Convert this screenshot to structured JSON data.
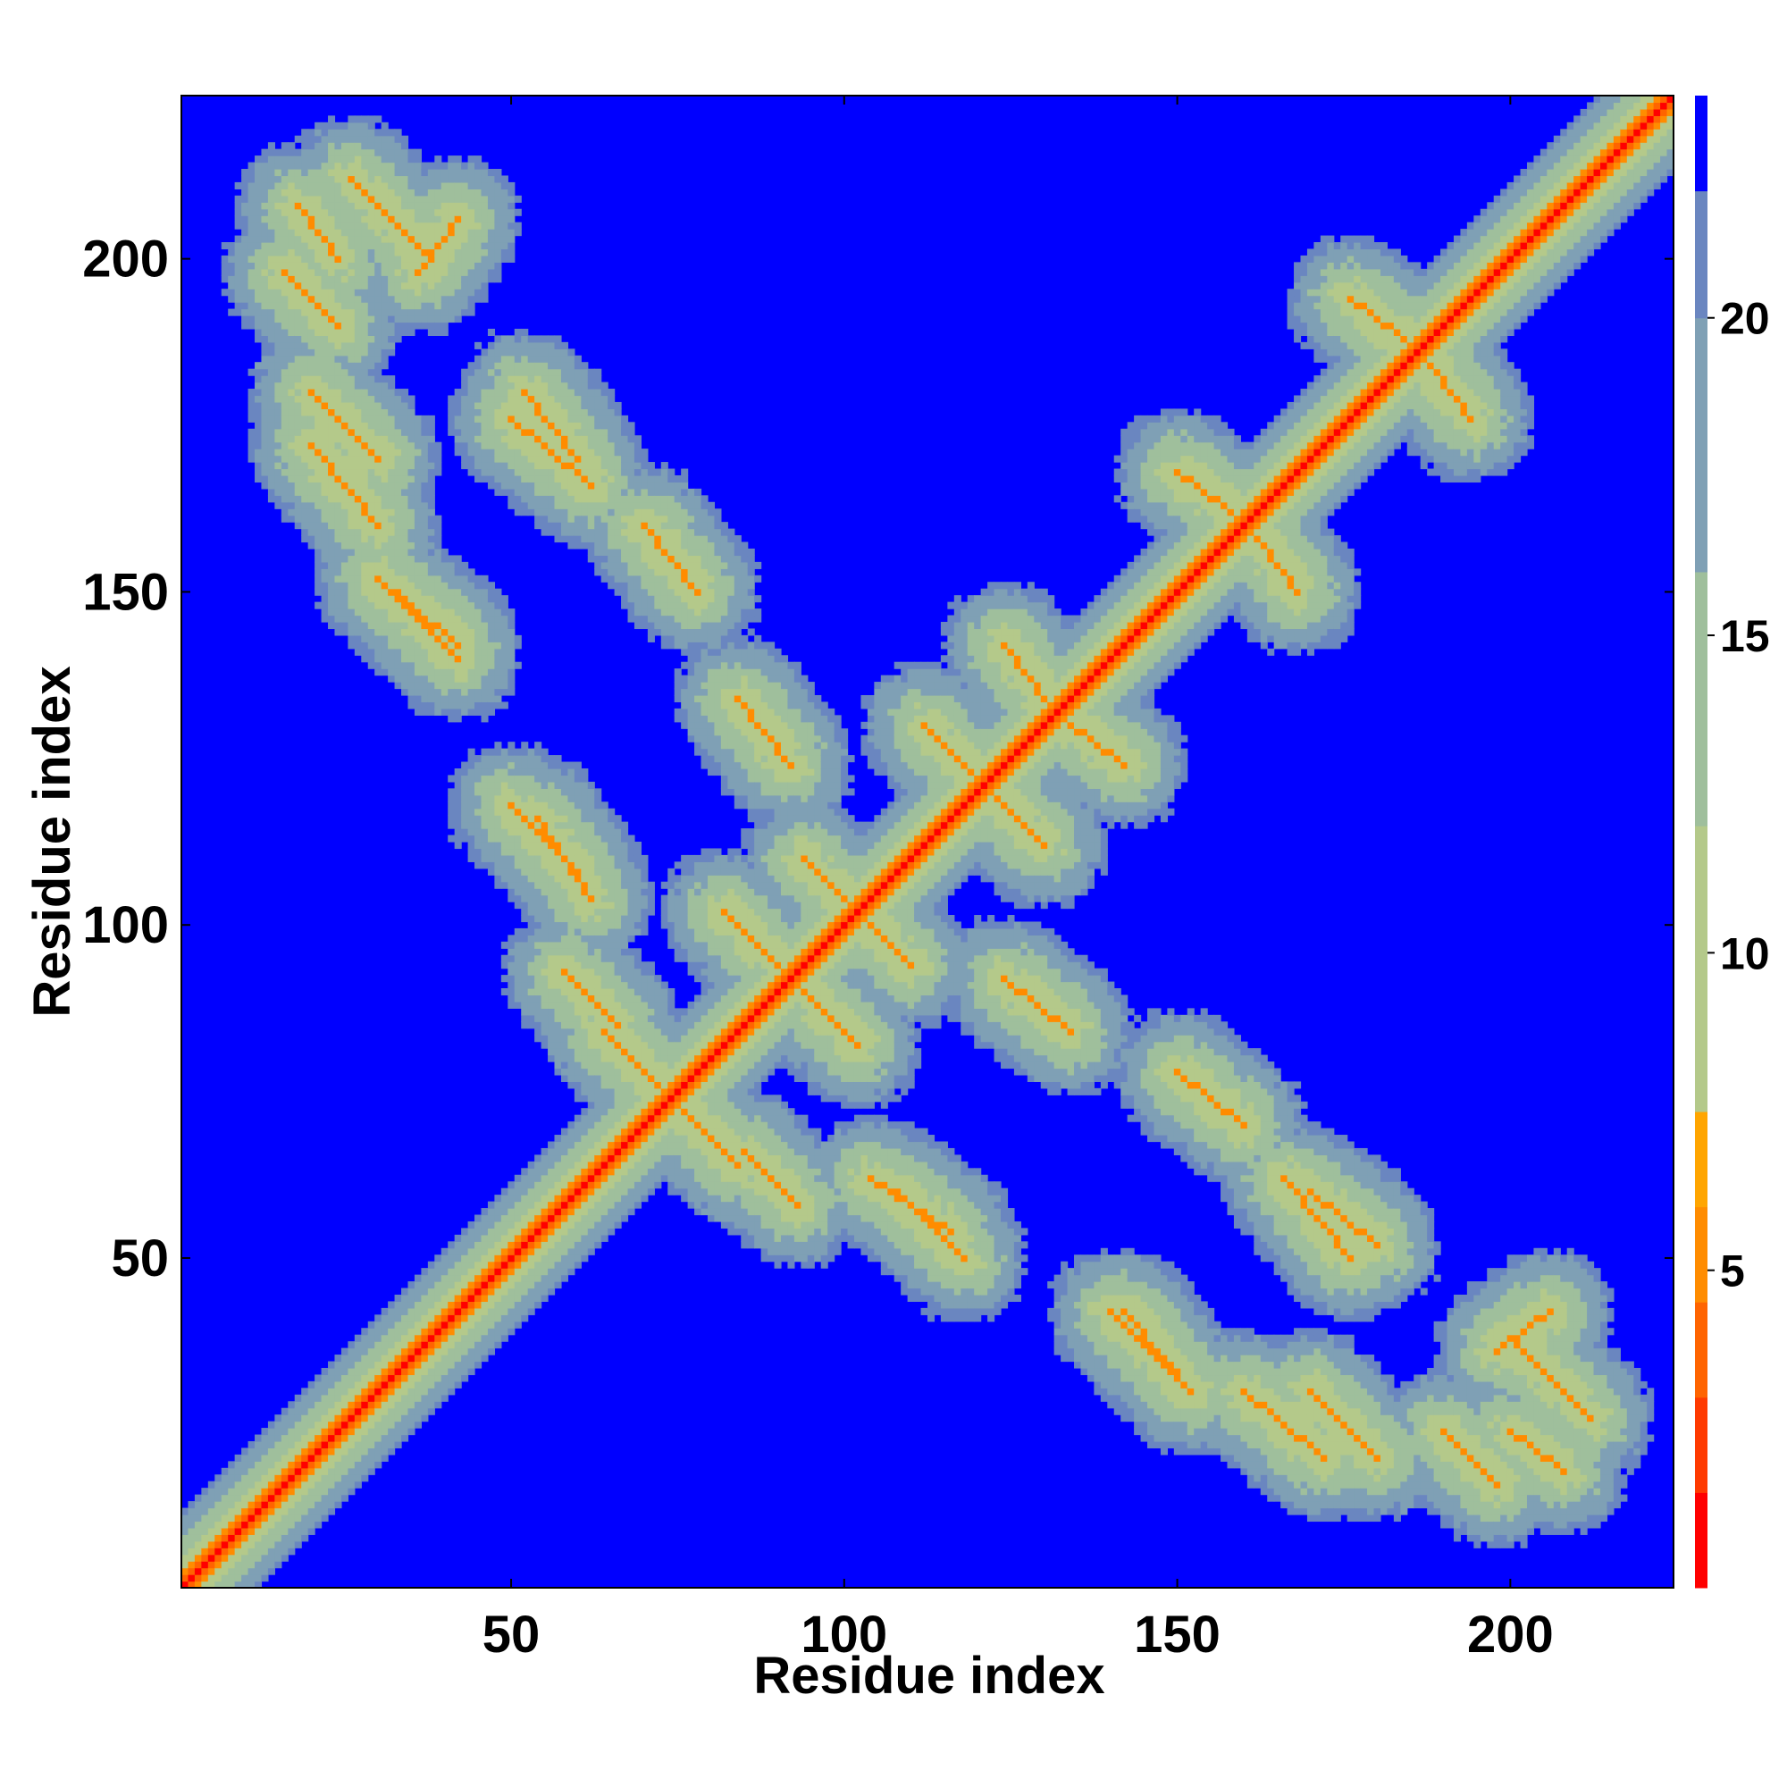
{
  "chart_data": {
    "type": "heatmap",
    "title": "",
    "xlabel": "Residue index",
    "ylabel": "Residue index",
    "xlim": [
      1,
      224
    ],
    "ylim": [
      1,
      224
    ],
    "x_ticks": [
      50,
      100,
      150,
      200
    ],
    "y_ticks": [
      50,
      100,
      150,
      200
    ],
    "colorbar": {
      "ticks": [
        5,
        10,
        15,
        20
      ],
      "range": [
        0,
        23.5
      ],
      "levels": [
        {
          "upper": 1.5,
          "color": "#ff0000"
        },
        {
          "upper": 3.0,
          "color": "#ff3a00"
        },
        {
          "upper": 4.5,
          "color": "#ff6400"
        },
        {
          "upper": 6.0,
          "color": "#ff8c00"
        },
        {
          "upper": 7.5,
          "color": "#ffa500"
        },
        {
          "upper": 12.0,
          "color": "#b4c98a"
        },
        {
          "upper": 16.0,
          "color": "#9fbf9c"
        },
        {
          "upper": 20.0,
          "color": "#7fa0b5"
        },
        {
          "upper": 22.0,
          "color": "#6a86c0"
        },
        {
          "upper": 23.5,
          "color": "#0000ff"
        }
      ],
      "above_max_color": "#0000ff"
    },
    "description_values": "Symmetric residue-residue distance map (Angstrom); diagonal ~0 (red), contacts 5-7 (orange), neighborhoods 8-20 (green-grey), >22 (blue)",
    "contacts": [
      {
        "ranges": [
          [
            58,
            66
          ],
          [
            85,
            93
          ]
        ],
        "type": "antiparallel"
      },
      {
        "ranges": [
          [
            64,
            72
          ],
          [
            76,
            84
          ]
        ],
        "type": "antiparallel"
      },
      {
        "ranges": [
          [
            82,
            90
          ],
          [
            94,
            102
          ]
        ],
        "type": "antiparallel"
      },
      {
        "ranges": [
          [
            94,
            100
          ],
          [
            104,
            110
          ]
        ],
        "type": "antiparallel"
      },
      {
        "ranges": [
          [
            112,
            120
          ],
          [
            122,
            130
          ]
        ],
        "type": "antiparallel"
      },
      {
        "ranges": [
          [
            124,
            130
          ],
          [
            134,
            142
          ]
        ],
        "type": "antiparallel"
      },
      {
        "ranges": [
          [
            150,
            158
          ],
          [
            162,
            168
          ]
        ],
        "type": "antiparallel"
      },
      {
        "ranges": [
          [
            176,
            184
          ],
          [
            188,
            194
          ]
        ],
        "type": "antiparallel"
      },
      {
        "ranges": [
          [
            20,
            30
          ],
          [
            160,
            172
          ]
        ],
        "type": "antiparallel"
      },
      {
        "ranges": [
          [
            30,
            42
          ],
          [
            140,
            152
          ]
        ],
        "type": "antiparallel"
      },
      {
        "ranges": [
          [
            52,
            60
          ],
          [
            170,
            180
          ]
        ],
        "type": "antiparallel"
      },
      {
        "ranges": [
          [
            36,
            42
          ],
          [
            198,
            206
          ]
        ],
        "type": "parallel"
      },
      {
        "ranges": [
          [
            54,
            62
          ],
          [
            104,
            116
          ]
        ],
        "type": "antiparallel"
      },
      {
        "ranges": [
          [
            108,
            118
          ],
          [
            50,
            60
          ]
        ],
        "type": "antiparallel"
      },
      {
        "ranges": [
          [
            142,
            152
          ],
          [
            30,
            42
          ]
        ],
        "type": "antiparallel"
      },
      {
        "ranges": [
          [
            166,
            176
          ],
          [
            50,
            62
          ]
        ],
        "type": "antiparallel"
      },
      {
        "ranges": [
          [
            170,
            180
          ],
          [
            20,
            30
          ]
        ],
        "type": "antiparallel"
      },
      {
        "ranges": [
          [
            200,
            212
          ],
          [
            26,
            38
          ]
        ],
        "type": "antiparallel"
      },
      {
        "ranges": [
          [
            190,
            198
          ],
          [
            16,
            24
          ]
        ],
        "type": "antiparallel"
      },
      {
        "ranges": [
          [
            150,
            160
          ],
          [
            70,
            78
          ]
        ],
        "type": "antiparallel"
      },
      {
        "ranges": [
          [
            124,
            134
          ],
          [
            84,
            92
          ]
        ],
        "type": "antiparallel"
      },
      {
        "ranges": [
          [
            18,
            24
          ],
          [
            200,
            208
          ]
        ],
        "type": "antiparallel"
      }
    ]
  },
  "colors": {
    "background": "#0000ff",
    "diagonal": "#ff0000",
    "contact": "#ff8c00",
    "neighborhood": "#a9c591"
  }
}
